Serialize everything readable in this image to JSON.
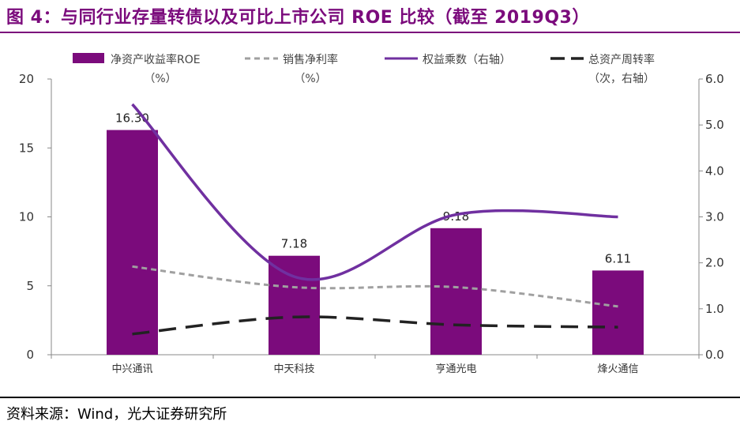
{
  "title": "图 4：与同行业存量转债以及可比上市公司 ROE 比较（截至 2019Q3）",
  "source": "资料来源：Wind，光大证券研究所",
  "chart_data": {
    "type": "bar",
    "categories": [
      "中兴通讯",
      "中天科技",
      "亨通光电",
      "烽火通信"
    ],
    "ylim": [
      0,
      20
    ],
    "y2lim": [
      0,
      6
    ],
    "yticks": [
      "0",
      "5",
      "10",
      "15",
      "20"
    ],
    "y2ticks": [
      "0.0",
      "1.0",
      "2.0",
      "3.0",
      "4.0",
      "5.0",
      "6.0"
    ],
    "series": [
      {
        "name": "净资产收益率ROE",
        "name_sub": "（%）",
        "type": "bar",
        "axis": "left",
        "color": "#7B0B7C",
        "values": [
          16.3,
          7.18,
          9.18,
          6.11
        ],
        "labels": [
          "16.30",
          "7.18",
          "9.18",
          "6.11"
        ]
      },
      {
        "name": "销售净利率",
        "name_sub": "（%）",
        "type": "line",
        "style": "dashed",
        "axis": "left",
        "color": "#A0A0A0",
        "values": [
          6.4,
          4.9,
          4.9,
          3.5
        ]
      },
      {
        "name": "权益乘数（右轴）",
        "type": "line",
        "style": "smooth",
        "axis": "right",
        "color": "#7030A0",
        "values": [
          5.45,
          1.7,
          3.05,
          3.0
        ]
      },
      {
        "name": "总资产周转率",
        "name_sub": "（次，右轴）",
        "type": "line",
        "style": "longdash",
        "axis": "right",
        "color": "#222222",
        "values": [
          0.45,
          0.82,
          0.65,
          0.6
        ]
      }
    ]
  }
}
